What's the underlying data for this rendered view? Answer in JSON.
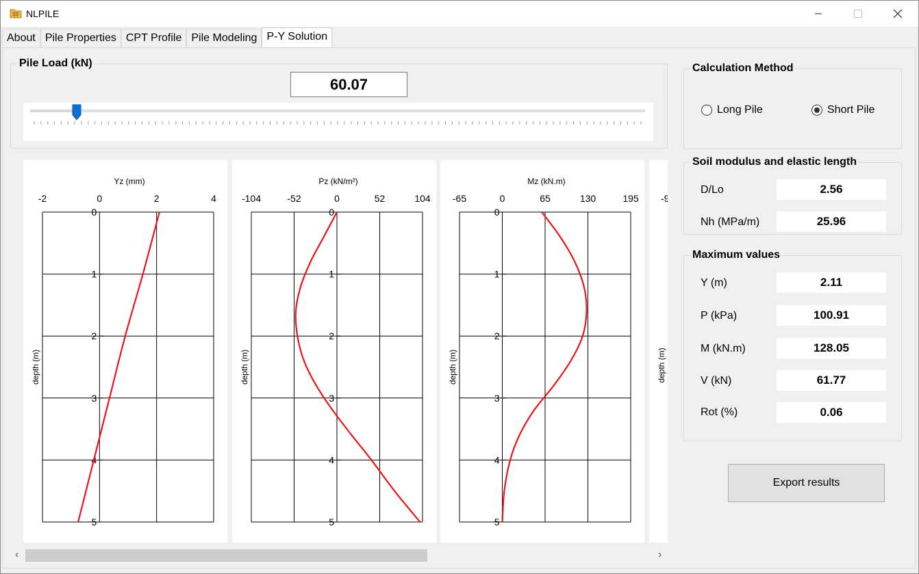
{
  "window": {
    "title": "NLPILE",
    "icons": {
      "app": "app-folder-icon",
      "minimize": "minimize-icon",
      "maximize": "maximize-icon",
      "close": "close-icon"
    }
  },
  "tabs": [
    {
      "label": "About",
      "active": false
    },
    {
      "label": "Pile Properties",
      "active": false
    },
    {
      "label": "CPT Profile",
      "active": false
    },
    {
      "label": "Pile Modeling",
      "active": false
    },
    {
      "label": "P-Y Solution",
      "active": true
    }
  ],
  "pile_load": {
    "title": "Pile Load (kN)",
    "value": "60.07",
    "slider_fraction": 0.076,
    "tick_count": 90
  },
  "calculation_method": {
    "title": "Calculation Method",
    "options": [
      {
        "label": "Long Pile",
        "selected": false
      },
      {
        "label": "Short Pile",
        "selected": true
      }
    ]
  },
  "soil_modulus": {
    "title": "Soil modulus and elastic length",
    "rows": [
      {
        "label": "D/Lo",
        "value": "2.56"
      },
      {
        "label": "Nh (MPa/m)",
        "value": "25.96"
      }
    ]
  },
  "maximum_values": {
    "title": "Maximum values",
    "rows": [
      {
        "label": "Y (m)",
        "value": "2.11"
      },
      {
        "label": "P (kPa)",
        "value": "100.91"
      },
      {
        "label": "M (kN.m)",
        "value": "128.05"
      },
      {
        "label": "V (kN)",
        "value": "61.77"
      },
      {
        "label": "Rot (%)",
        "value": "0.06"
      }
    ]
  },
  "export_button": {
    "label": "Export results"
  },
  "colors": {
    "curve": "#e8141a",
    "accent": "#0a6fd1",
    "grid": "#000000"
  },
  "chart_data": [
    {
      "type": "line",
      "title": "Yz (mm)",
      "xlabel": "Yz (mm)",
      "ylabel": "depth (m)",
      "xticks": [
        "-2",
        "0",
        "2",
        "4"
      ],
      "xlim": [
        -2,
        4
      ],
      "yticks": [
        "0",
        "1",
        "2",
        "3",
        "4",
        "5"
      ],
      "ylim": [
        0,
        5
      ],
      "y_inverted": true,
      "grid": true,
      "series": [
        {
          "x": [
            2.1,
            1.52,
            0.9,
            0.35,
            -0.2,
            -0.75
          ],
          "y": [
            0,
            1,
            2,
            3,
            4,
            5
          ]
        }
      ]
    },
    {
      "type": "line",
      "title": "Pz (kN/m²)",
      "xlabel": "Pz (kN/m²)",
      "ylabel": "depth (m)",
      "xticks": [
        "-104",
        "-52",
        "0",
        "52",
        "104"
      ],
      "xlim": [
        -104,
        104
      ],
      "yticks": [
        "0",
        "1",
        "2",
        "3",
        "4",
        "5"
      ],
      "ylim": [
        0,
        5
      ],
      "y_inverted": true,
      "grid": true,
      "series": [
        {
          "x": [
            0,
            -16,
            -32,
            -44,
            -50,
            -48,
            -40,
            -25,
            -5,
            18,
            42,
            70,
            101
          ],
          "y": [
            0,
            0.4,
            0.8,
            1.2,
            1.6,
            2.0,
            2.4,
            2.8,
            3.2,
            3.6,
            4.0,
            4.5,
            5.0
          ]
        }
      ]
    },
    {
      "type": "line",
      "title": "Mz (kN.m)",
      "xlabel": "Mz (kN.m)",
      "ylabel": "depth (m)",
      "xticks": [
        "-65",
        "0",
        "65",
        "130",
        "195"
      ],
      "xlim": [
        -65,
        195
      ],
      "yticks": [
        "0",
        "1",
        "2",
        "3",
        "4",
        "5"
      ],
      "ylim": [
        0,
        5
      ],
      "y_inverted": true,
      "grid": true,
      "series": [
        {
          "x": [
            60,
            88,
            110,
            124,
            128,
            122,
            104,
            78,
            48,
            26,
            12,
            3,
            0
          ],
          "y": [
            0,
            0.4,
            0.8,
            1.2,
            1.6,
            2.0,
            2.4,
            2.8,
            3.2,
            3.6,
            4.0,
            4.5,
            5.0
          ]
        }
      ]
    },
    {
      "type": "line",
      "partial": true,
      "xticks": [
        "-9"
      ],
      "ylabel": "depth (m)"
    }
  ]
}
